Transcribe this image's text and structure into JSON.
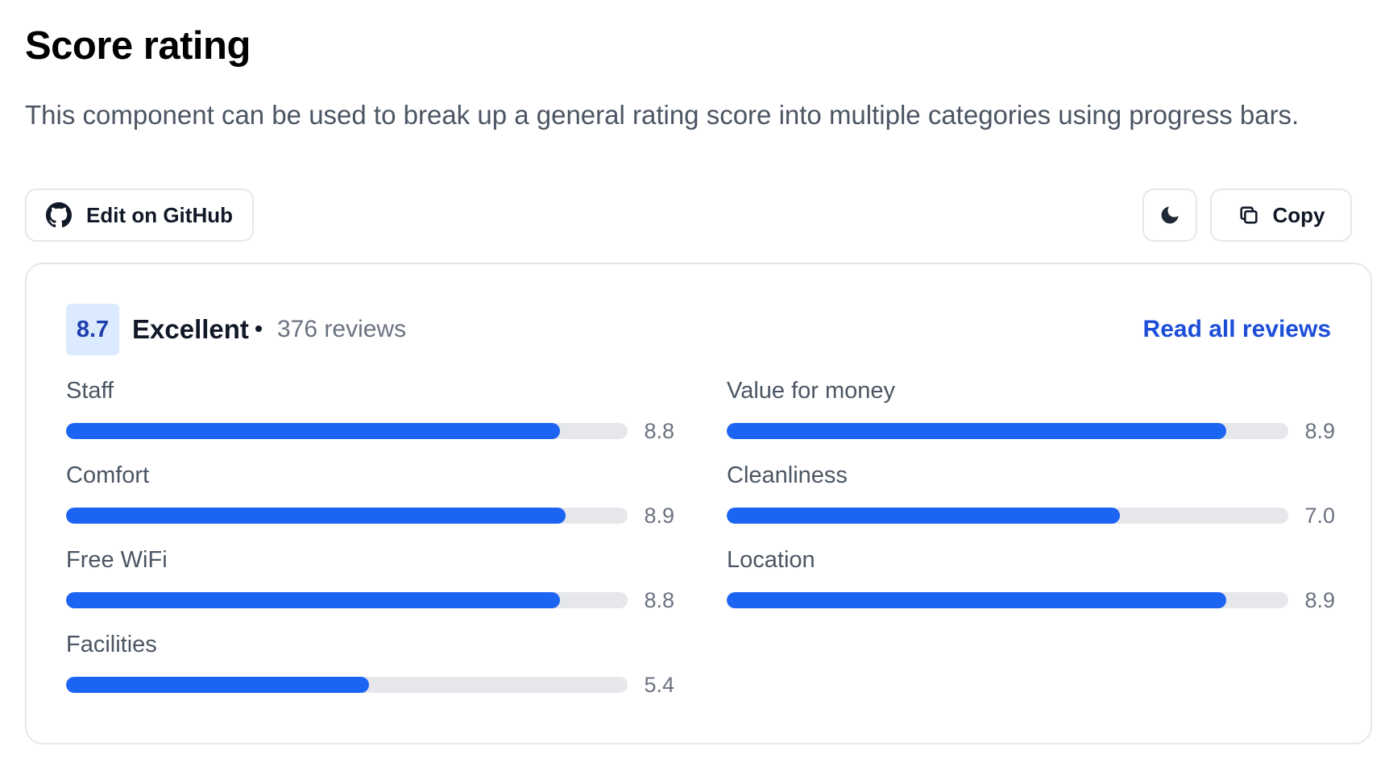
{
  "header": {
    "title": "Score rating",
    "description": "This component can be used to break up a general rating score into multiple categories using progress bars."
  },
  "toolbar": {
    "github_label": "Edit on GitHub",
    "copy_label": "Copy",
    "theme_icon": "moon-icon"
  },
  "rating": {
    "score": "8.7",
    "label": "Excellent",
    "reviews": "376 reviews",
    "read_all": "Read all reviews"
  },
  "metrics": {
    "scale_max": 10,
    "left": [
      {
        "label": "Staff",
        "value": "8.8"
      },
      {
        "label": "Comfort",
        "value": "8.9"
      },
      {
        "label": "Free WiFi",
        "value": "8.8"
      },
      {
        "label": "Facilities",
        "value": "5.4"
      }
    ],
    "right": [
      {
        "label": "Value for money",
        "value": "8.9"
      },
      {
        "label": "Cleanliness",
        "value": "7.0"
      },
      {
        "label": "Location",
        "value": "8.9"
      }
    ]
  },
  "colors": {
    "accent": "#1c64f2",
    "badge_bg": "#dbeafe",
    "badge_text": "#1e40af",
    "link": "#1d4ed8",
    "track": "#e5e7eb"
  }
}
